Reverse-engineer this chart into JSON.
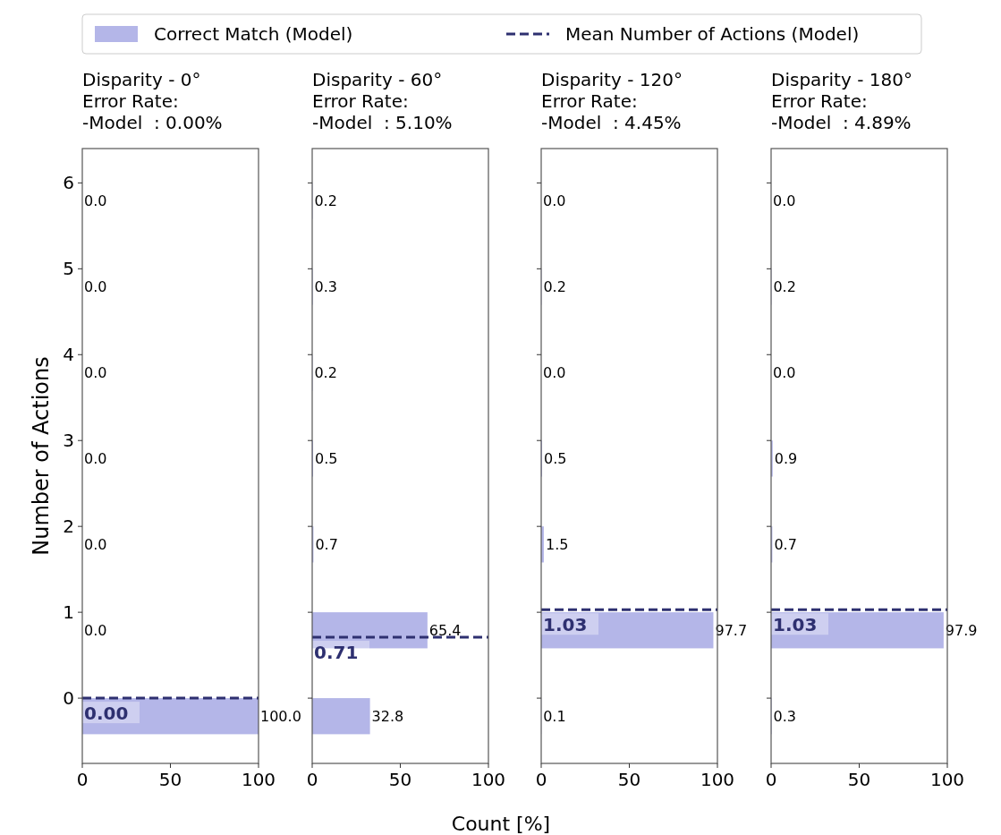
{
  "chart_data": [
    {
      "type": "bar",
      "orientation": "horizontal",
      "title": "Disparity - 0°\nError Rate:\n-Model  : 0.00%",
      "ylabel": "Number of Actions",
      "x": [
        -0.21,
        0.79,
        1.79,
        2.79,
        3.79,
        4.79,
        5.79
      ],
      "xlim": [
        0,
        100
      ],
      "xticks": [
        0,
        50,
        100
      ],
      "ylim": [
        -0.76,
        6.4
      ],
      "yticks": [
        0,
        1,
        2,
        3,
        4,
        5,
        6
      ],
      "legend": "top",
      "grid": false,
      "series": [
        {
          "name": "Correct Match (Model)",
          "color": "#b4b6e8",
          "values": [
            100.0,
            0.0,
            0.0,
            0.0,
            0.0,
            0.0,
            0.0
          ],
          "value_labels": [
            "100.0",
            "0.0",
            "0.0",
            "0.0",
            "0.0",
            "0.0",
            "0.0"
          ]
        },
        {
          "name": "Mean Number of Actions (Model)",
          "type": "line",
          "line_style": "dashed",
          "color": "#2e3070",
          "x": [
            0.0,
            0.0
          ],
          "values": [
            0,
            100
          ]
        }
      ],
      "annotations": [
        "0.00"
      ]
    },
    {
      "type": "bar",
      "orientation": "horizontal",
      "title": "Disparity - 60°\nError Rate:\n-Model  : 5.10%",
      "xlabel": "Count [%]",
      "x": [
        -0.21,
        0.79,
        1.79,
        2.79,
        3.79,
        4.79,
        5.79
      ],
      "xlim": [
        0,
        100
      ],
      "xticks": [
        0,
        50,
        100
      ],
      "ylim": [
        -0.76,
        6.4
      ],
      "yticks": [
        0,
        1,
        2,
        3,
        4,
        5,
        6
      ],
      "tick_labels": "x",
      "grid": false,
      "series": [
        {
          "color": "#b4b6e8",
          "values": [
            32.8,
            65.4,
            0.7,
            0.5,
            0.2,
            0.3,
            0.2
          ],
          "value_labels": [
            "32.8",
            "65.4",
            "0.7",
            "0.5",
            "0.2",
            "0.3",
            "0.2"
          ]
        },
        {
          "type": "line",
          "line_style": "dashed",
          "color": "#2e3070",
          "x": [
            0.71,
            0.71
          ],
          "values": [
            0,
            100
          ]
        }
      ],
      "annotations": [
        "0.71"
      ]
    },
    {
      "type": "bar",
      "orientation": "horizontal",
      "title": "Disparity - 120°\nError Rate:\n-Model  : 4.45%",
      "x": [
        -0.21,
        0.79,
        1.79,
        2.79,
        3.79,
        4.79,
        5.79
      ],
      "xlim": [
        0,
        100
      ],
      "xticks": [
        0,
        50,
        100
      ],
      "ylim": [
        -0.76,
        6.4
      ],
      "yticks": [
        0,
        1,
        2,
        3,
        4,
        5,
        6
      ],
      "tick_labels": "x",
      "grid": false,
      "series": [
        {
          "color": "#b4b6e8",
          "values": [
            0.1,
            97.7,
            1.5,
            0.5,
            0.0,
            0.2,
            0.0
          ],
          "value_labels": [
            "0.1",
            "97.7",
            "1.5",
            "0.5",
            "0.0",
            "0.2",
            "0.0"
          ]
        },
        {
          "type": "line",
          "line_style": "dashed",
          "color": "#2e3070",
          "x": [
            1.03,
            1.03
          ],
          "values": [
            0,
            100
          ]
        }
      ],
      "annotations": [
        "1.03"
      ]
    },
    {
      "type": "bar",
      "orientation": "horizontal",
      "title": "Disparity - 180°\nError Rate:\n-Model  : 4.89%",
      "x": [
        -0.21,
        0.79,
        1.79,
        2.79,
        3.79,
        4.79,
        5.79
      ],
      "xlim": [
        0,
        100
      ],
      "xticks": [
        0,
        50,
        100
      ],
      "ylim": [
        -0.76,
        6.4
      ],
      "yticks": [
        0,
        1,
        2,
        3,
        4,
        5,
        6
      ],
      "tick_labels": "x",
      "grid": false,
      "series": [
        {
          "color": "#b4b6e8",
          "values": [
            0.3,
            97.9,
            0.7,
            0.9,
            0.0,
            0.2,
            0.0
          ],
          "value_labels": [
            "0.3",
            "97.9",
            "0.7",
            "0.9",
            "0.0",
            "0.2",
            "0.0"
          ]
        },
        {
          "type": "line",
          "line_style": "dashed",
          "color": "#2e3070",
          "x": [
            1.03,
            1.03
          ],
          "values": [
            0,
            100
          ]
        }
      ],
      "annotations": [
        "1.03"
      ]
    }
  ]
}
